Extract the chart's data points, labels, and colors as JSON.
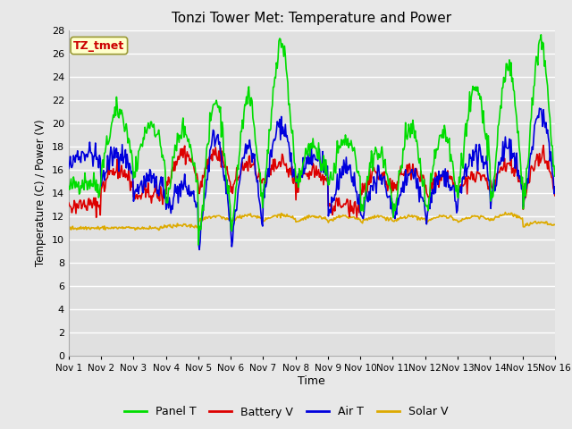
{
  "title": "Tonzi Tower Met: Temperature and Power",
  "xlabel": "Time",
  "ylabel": "Temperature (C) / Power (V)",
  "ylim": [
    0,
    28
  ],
  "yticks": [
    0,
    2,
    4,
    6,
    8,
    10,
    12,
    14,
    16,
    18,
    20,
    22,
    24,
    26,
    28
  ],
  "xtick_labels": [
    "Nov 1",
    "Nov 2",
    "Nov 3",
    "Nov 4",
    "Nov 5",
    "Nov 6",
    "Nov 7",
    "Nov 8",
    "Nov 9",
    "Nov 10",
    "Nov 11",
    "Nov 12",
    "Nov 13",
    "Nov 14",
    "Nov 15",
    "Nov 16"
  ],
  "annotation_text": "TZ_tmet",
  "annotation_color": "#cc0000",
  "annotation_bg": "#ffffcc",
  "annotation_edge": "#999933",
  "colors": {
    "panel_t": "#00dd00",
    "battery_v": "#dd0000",
    "air_t": "#0000dd",
    "solar_v": "#ddaa00"
  },
  "legend": [
    "Panel T",
    "Battery V",
    "Air T",
    "Solar V"
  ],
  "fig_bg": "#e8e8e8",
  "plot_bg": "#e0e0e0",
  "grid_color": "#ffffff",
  "n_points": 600
}
